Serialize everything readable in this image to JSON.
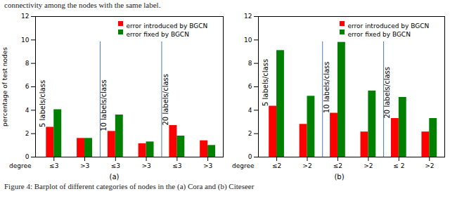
{
  "header": "connectivity among the nodes with the same label.",
  "caption": "Figure 4: Barplot of different categories of nodes in the (a) Cora and (b) Citeseer",
  "chart_data": [
    {
      "type": "bar",
      "title": "(a)",
      "x_label": "degree",
      "y_label": "percentage of test nodes",
      "categories": [
        "≤3",
        ">3",
        "≤3",
        ">3",
        "≤3",
        ">3"
      ],
      "annotations": [
        "5 labels/class",
        "10 labels/class",
        "20 labels/class"
      ],
      "series": [
        {
          "name": "error introduced by BGCN",
          "color": "#ff0000",
          "values": [
            2.55,
            1.6,
            2.2,
            1.15,
            2.7,
            1.4
          ]
        },
        {
          "name": "error fixed by BGCN",
          "color": "#008000",
          "values": [
            4.05,
            1.6,
            3.6,
            1.3,
            1.8,
            1.0
          ]
        }
      ],
      "ylim": [
        0,
        12
      ],
      "yticks": [
        0,
        2,
        4,
        6,
        8,
        10,
        12
      ],
      "legend": "top-right"
    },
    {
      "type": "bar",
      "title": "(b)",
      "x_label": "degree",
      "categories": [
        "≤2",
        ">2",
        "≤2",
        ">2",
        "≤ 2",
        ">2"
      ],
      "annotations": [
        "5 labels/class",
        "10 labels/class",
        "20 labels/class"
      ],
      "series": [
        {
          "name": "error introduced by BGCN",
          "color": "#ff0000",
          "values": [
            4.35,
            2.8,
            3.75,
            2.15,
            3.3,
            2.15
          ]
        },
        {
          "name": "error fixed by BGCN",
          "color": "#008000",
          "values": [
            9.1,
            5.2,
            9.8,
            5.65,
            5.1,
            3.3
          ]
        }
      ],
      "ylim": [
        0,
        12
      ],
      "yticks": [
        0,
        2,
        4,
        6,
        8,
        10,
        12
      ],
      "legend": "top-right"
    }
  ]
}
